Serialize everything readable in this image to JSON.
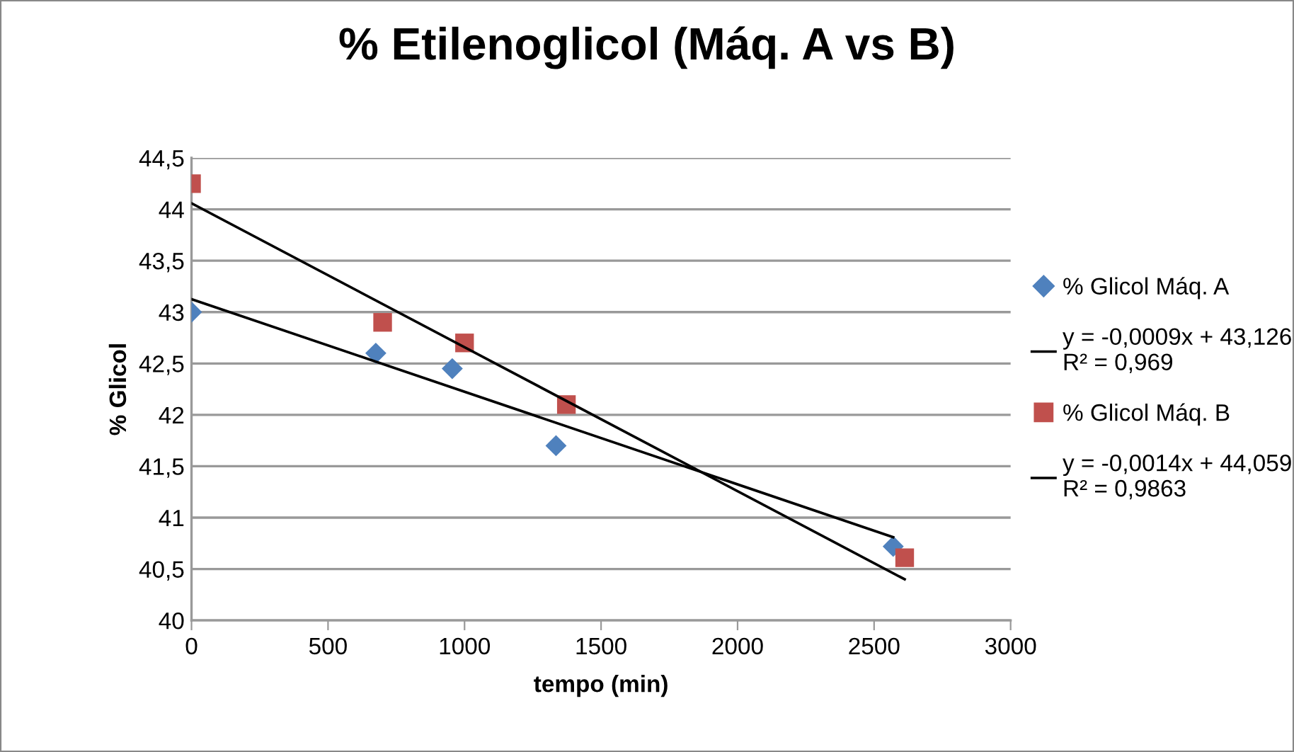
{
  "chart_data": {
    "type": "scatter",
    "title": "% Etilenoglicol (Máq. A vs B)",
    "xlabel": "tempo (min)",
    "ylabel": "% Glicol",
    "series": [
      {
        "name": "% Glicol Máq. A",
        "color": "#4f81bd",
        "marker": "diamond",
        "x": [
          0,
          675,
          955,
          1335,
          2570
        ],
        "values": [
          43.0,
          42.6,
          42.45,
          41.7,
          40.72
        ]
      },
      {
        "name": "y = -0,0009x + 43,126\nR² = 0,969",
        "type": "line",
        "color": "#000000",
        "marker": "none",
        "x": [
          0,
          2570
        ],
        "values": [
          43.126,
          40.81
        ]
      },
      {
        "name": "% Glicol Máq. B",
        "color": "#c0504d",
        "marker": "square",
        "x": [
          0,
          700,
          1000,
          1373,
          2612
        ],
        "values": [
          44.25,
          42.9,
          42.7,
          42.1,
          40.61
        ]
      },
      {
        "name": "y = -0,0014x + 44,059\nR² = 0,9863",
        "type": "line",
        "color": "#000000",
        "marker": "none",
        "x": [
          0,
          2612
        ],
        "values": [
          44.059,
          40.4
        ]
      }
    ],
    "xlim": [
      0,
      3000
    ],
    "xticks": [
      0,
      500,
      1000,
      1500,
      2000,
      2500,
      3000
    ],
    "ylim": [
      40,
      44.5
    ],
    "yticks": [
      40,
      {
        "value": 40.5,
        "label": "40,5"
      },
      41,
      {
        "value": 41.5,
        "label": "41,5"
      },
      42,
      {
        "value": 42.5,
        "label": "42,5"
      },
      43,
      {
        "value": 43.5,
        "label": "43,5"
      },
      44,
      {
        "value": 44.5,
        "label": "44,5"
      }
    ],
    "grid": "y",
    "legend": "right"
  }
}
